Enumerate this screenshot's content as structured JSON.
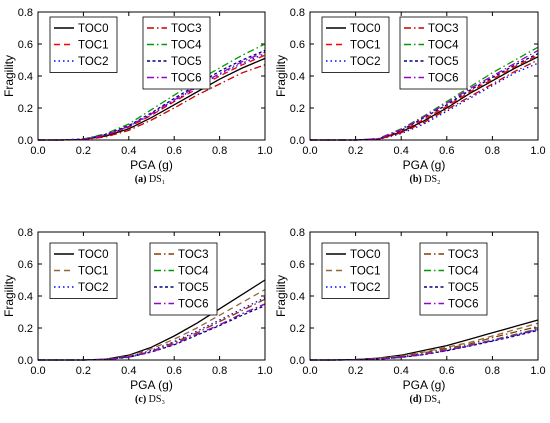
{
  "chart_data": [
    {
      "type": "line",
      "caption": "(a) DS₁",
      "caption_bold": "(a)",
      "caption_rest": "DS₁",
      "xlabel": "PGA (g)",
      "ylabel": "Fragility",
      "xlim": [
        0.0,
        1.0
      ],
      "ylim": [
        0.0,
        0.8
      ],
      "xticks": [
        "0.0",
        "0.2",
        "0.4",
        "0.6",
        "0.8",
        "1.0"
      ],
      "yticks": [
        "0.0",
        "0.2",
        "0.4",
        "0.6",
        "0.8"
      ],
      "x": [
        0.0,
        0.1,
        0.2,
        0.3,
        0.4,
        0.5,
        0.6,
        0.7,
        0.8,
        0.9,
        1.0
      ],
      "series": [
        {
          "name": "TOC0",
          "values": [
            0.0,
            0.0,
            0.003,
            0.025,
            0.07,
            0.14,
            0.22,
            0.3,
            0.38,
            0.45,
            0.51
          ]
        },
        {
          "name": "TOC1",
          "values": [
            0.0,
            0.0,
            0.004,
            0.03,
            0.08,
            0.155,
            0.24,
            0.32,
            0.4,
            0.47,
            0.53
          ]
        },
        {
          "name": "TOC2",
          "values": [
            0.0,
            0.0,
            0.004,
            0.03,
            0.085,
            0.16,
            0.245,
            0.33,
            0.41,
            0.48,
            0.54
          ]
        },
        {
          "name": "TOC3",
          "values": [
            0.0,
            0.0,
            0.002,
            0.02,
            0.06,
            0.125,
            0.2,
            0.28,
            0.35,
            0.42,
            0.47
          ]
        },
        {
          "name": "TOC4",
          "values": [
            0.0,
            0.0,
            0.006,
            0.04,
            0.1,
            0.19,
            0.28,
            0.37,
            0.45,
            0.53,
            0.6
          ]
        },
        {
          "name": "TOC5",
          "values": [
            0.0,
            0.0,
            0.005,
            0.035,
            0.09,
            0.17,
            0.26,
            0.345,
            0.43,
            0.5,
            0.56
          ]
        },
        {
          "name": "TOC6",
          "values": [
            0.0,
            0.0,
            0.004,
            0.032,
            0.085,
            0.165,
            0.25,
            0.335,
            0.415,
            0.49,
            0.55
          ]
        }
      ]
    },
    {
      "type": "line",
      "caption": "(b) DS₂",
      "caption_bold": "(b)",
      "caption_rest": "DS₂",
      "xlabel": "PGA (g)",
      "ylabel": "Fragility",
      "xlim": [
        0.0,
        1.0
      ],
      "ylim": [
        0.0,
        0.8
      ],
      "xticks": [
        "0.0",
        "0.2",
        "0.4",
        "0.6",
        "0.8",
        "1.0"
      ],
      "yticks": [
        "0.0",
        "0.2",
        "0.4",
        "0.6",
        "0.8"
      ],
      "x": [
        0.0,
        0.1,
        0.2,
        0.3,
        0.4,
        0.5,
        0.6,
        0.7,
        0.8,
        0.9,
        1.0
      ],
      "series": [
        {
          "name": "TOC0",
          "values": [
            0.0,
            0.0,
            0.0,
            0.005,
            0.05,
            0.12,
            0.2,
            0.29,
            0.37,
            0.45,
            0.52
          ]
        },
        {
          "name": "TOC1",
          "values": [
            0.0,
            0.0,
            0.0,
            0.006,
            0.055,
            0.13,
            0.21,
            0.3,
            0.38,
            0.46,
            0.53
          ]
        },
        {
          "name": "TOC2",
          "values": [
            0.0,
            0.0,
            0.0,
            0.003,
            0.04,
            0.1,
            0.18,
            0.26,
            0.34,
            0.42,
            0.48
          ]
        },
        {
          "name": "TOC3",
          "values": [
            0.0,
            0.0,
            0.0,
            0.004,
            0.045,
            0.11,
            0.19,
            0.27,
            0.35,
            0.43,
            0.5
          ]
        },
        {
          "name": "TOC4",
          "values": [
            0.0,
            0.0,
            0.0,
            0.009,
            0.07,
            0.15,
            0.24,
            0.33,
            0.42,
            0.5,
            0.58
          ]
        },
        {
          "name": "TOC5",
          "values": [
            0.0,
            0.0,
            0.0,
            0.007,
            0.06,
            0.14,
            0.22,
            0.31,
            0.39,
            0.47,
            0.54
          ]
        },
        {
          "name": "TOC6",
          "values": [
            0.0,
            0.0,
            0.0,
            0.008,
            0.065,
            0.145,
            0.23,
            0.32,
            0.4,
            0.48,
            0.56
          ]
        }
      ]
    },
    {
      "type": "line",
      "caption": "(c) DS₃",
      "caption_bold": "(c)",
      "caption_rest": "DS₃",
      "xlabel": "PGA (g)",
      "ylabel": "Fragility",
      "xlim": [
        0.0,
        1.0
      ],
      "ylim": [
        0.0,
        0.8
      ],
      "xticks": [
        "0.0",
        "0.2",
        "0.4",
        "0.6",
        "0.8",
        "1.0"
      ],
      "yticks": [
        "0.0",
        "0.2",
        "0.4",
        "0.6",
        "0.8"
      ],
      "x": [
        0.0,
        0.1,
        0.2,
        0.3,
        0.4,
        0.5,
        0.6,
        0.7,
        0.8,
        0.9,
        1.0
      ],
      "series": [
        {
          "name": "TOC0",
          "values": [
            0.0,
            0.0,
            0.0,
            0.005,
            0.03,
            0.08,
            0.15,
            0.23,
            0.32,
            0.41,
            0.5
          ]
        },
        {
          "name": "TOC1",
          "values": [
            0.0,
            0.0,
            0.0,
            0.004,
            0.025,
            0.07,
            0.13,
            0.2,
            0.28,
            0.36,
            0.44
          ]
        },
        {
          "name": "TOC2",
          "values": [
            0.0,
            0.0,
            0.0,
            0.003,
            0.02,
            0.06,
            0.115,
            0.18,
            0.25,
            0.32,
            0.39
          ]
        },
        {
          "name": "TOC3",
          "values": [
            0.0,
            0.0,
            0.0,
            0.003,
            0.02,
            0.055,
            0.11,
            0.17,
            0.24,
            0.31,
            0.38
          ]
        },
        {
          "name": "TOC4",
          "values": [
            0.0,
            0.0,
            0.0,
            0.003,
            0.018,
            0.05,
            0.1,
            0.16,
            0.22,
            0.29,
            0.35
          ]
        },
        {
          "name": "TOC5",
          "values": [
            0.0,
            0.0,
            0.0,
            0.003,
            0.017,
            0.05,
            0.095,
            0.155,
            0.215,
            0.28,
            0.34
          ]
        },
        {
          "name": "TOC6",
          "values": [
            0.0,
            0.0,
            0.0,
            0.003,
            0.018,
            0.052,
            0.1,
            0.16,
            0.22,
            0.29,
            0.35
          ]
        }
      ]
    },
    {
      "type": "line",
      "caption": "(d) DS₄",
      "caption_bold": "(d)",
      "caption_rest": "DS₄",
      "xlabel": "PGA (g)",
      "ylabel": "Fragility",
      "xlim": [
        0.0,
        1.0
      ],
      "ylim": [
        0.0,
        0.8
      ],
      "xticks": [
        "0.0",
        "0.2",
        "0.4",
        "0.6",
        "0.8",
        "1.0"
      ],
      "yticks": [
        "0.0",
        "0.2",
        "0.4",
        "0.6",
        "0.8"
      ],
      "x": [
        0.0,
        0.1,
        0.2,
        0.3,
        0.4,
        0.5,
        0.6,
        0.7,
        0.8,
        0.9,
        1.0
      ],
      "series": [
        {
          "name": "TOC0",
          "values": [
            0.0,
            0.0,
            0.003,
            0.012,
            0.03,
            0.06,
            0.09,
            0.13,
            0.17,
            0.21,
            0.25
          ]
        },
        {
          "name": "TOC1",
          "values": [
            0.0,
            0.0,
            0.002,
            0.01,
            0.025,
            0.05,
            0.08,
            0.11,
            0.15,
            0.19,
            0.23
          ]
        },
        {
          "name": "TOC2",
          "values": [
            0.0,
            0.0,
            0.001,
            0.006,
            0.017,
            0.035,
            0.06,
            0.09,
            0.12,
            0.155,
            0.19
          ]
        },
        {
          "name": "TOC3",
          "values": [
            0.0,
            0.0,
            0.002,
            0.008,
            0.022,
            0.045,
            0.072,
            0.1,
            0.14,
            0.175,
            0.21
          ]
        },
        {
          "name": "TOC4",
          "values": [
            0.0,
            0.0,
            0.001,
            0.006,
            0.018,
            0.037,
            0.063,
            0.093,
            0.125,
            0.16,
            0.195
          ]
        },
        {
          "name": "TOC5",
          "values": [
            0.0,
            0.0,
            0.001,
            0.005,
            0.016,
            0.034,
            0.058,
            0.087,
            0.118,
            0.15,
            0.185
          ]
        },
        {
          "name": "TOC6",
          "values": [
            0.0,
            0.0,
            0.001,
            0.006,
            0.017,
            0.036,
            0.061,
            0.09,
            0.122,
            0.155,
            0.19
          ]
        }
      ]
    }
  ],
  "styles": {
    "TOC0": {
      "color": "#000000",
      "dash": ""
    },
    "TOC1": {
      "color": "#ff0000",
      "dash": "6,4"
    },
    "TOC2": {
      "color": "#0000ff",
      "dash": "1.5,3"
    },
    "TOC3": {
      "color": "#cc0000",
      "dash": "7,3,1.5,3"
    },
    "TOC4": {
      "color": "#009900",
      "dash": "7,3,1.5,3"
    },
    "TOC5": {
      "color": "#000080",
      "dash": "3,2.5"
    },
    "TOC6": {
      "color": "#9900cc",
      "dash": "7,3,1.5,3"
    },
    "lower_overrides": {
      "TOC1": {
        "color": "#996633",
        "dash": "6,4"
      },
      "TOC3": {
        "color": "#8b3a00",
        "dash": "7,3,1.5,3"
      }
    }
  }
}
